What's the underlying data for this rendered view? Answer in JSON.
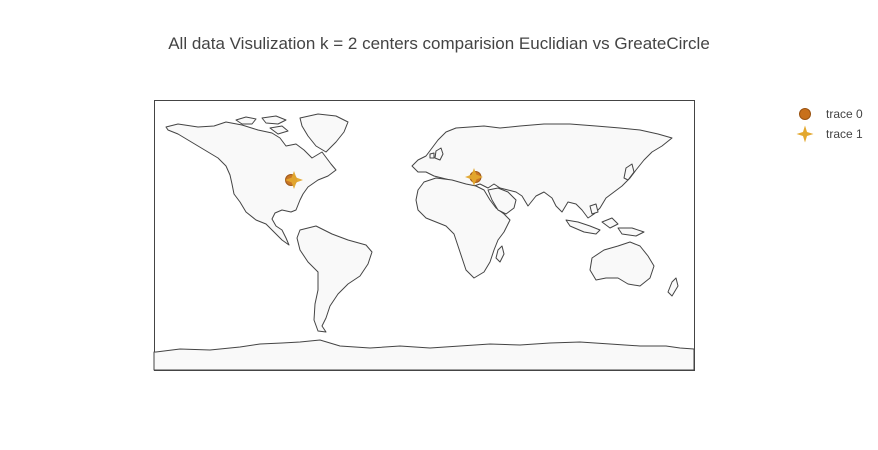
{
  "title": "All data Visulization k = 2 centers comparision Euclidian vs GreateCircle",
  "legend": [
    {
      "label": "trace 0",
      "marker": "circle",
      "color": "#c8701a"
    },
    {
      "label": "trace 1",
      "marker": "star-4",
      "color": "#e3a82e"
    }
  ],
  "chart_data": {
    "type": "scatter",
    "projection": "equirectangular",
    "lon_range": [
      -180,
      180
    ],
    "lat_range": [
      -90,
      90
    ],
    "land_color": "#f9f9f9",
    "coast_color": "#444444",
    "series": [
      {
        "name": "trace 0",
        "marker": "circle",
        "color": "#c8701a",
        "points": [
          {
            "lon": -89,
            "lat": 37
          },
          {
            "lon": 34,
            "lat": 39
          }
        ]
      },
      {
        "name": "trace 1",
        "marker": "star-4",
        "color": "#e3a82e",
        "points": [
          {
            "lon": -87,
            "lat": 37
          },
          {
            "lon": 33,
            "lat": 39
          }
        ]
      }
    ]
  }
}
